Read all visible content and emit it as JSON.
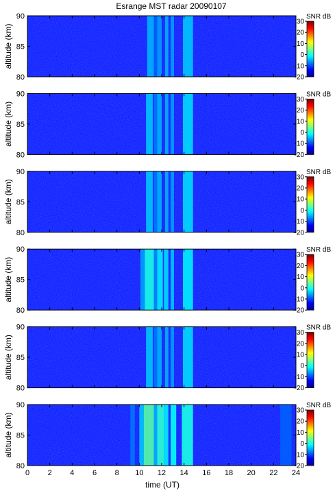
{
  "title": "Esrange MST radar 20090107",
  "chart_data": {
    "type": "heatmap",
    "title": "Esrange MST radar 20090107",
    "xlabel": "time (UT)",
    "ylabel": "altitude (km)",
    "colorbar_label": "SNR dB",
    "xlim": [
      0,
      24
    ],
    "x_ticks": [
      0,
      2,
      4,
      6,
      8,
      10,
      12,
      14,
      16,
      18,
      20,
      22,
      24
    ],
    "ylim": [
      80,
      90
    ],
    "y_ticks": [
      80,
      85,
      90
    ],
    "clim": [
      -20,
      30
    ],
    "c_ticks": [
      -20,
      -10,
      0,
      10,
      20,
      30
    ],
    "colormap": "jet",
    "background_snr_db": -13,
    "panel_count": 6,
    "panels": [
      {
        "bands": [
          {
            "start": 10.7,
            "end": 11.3,
            "snr_db": -5
          },
          {
            "start": 11.3,
            "end": 11.6,
            "snr_db": -9
          },
          {
            "start": 11.6,
            "end": 12.0,
            "snr_db": -6
          },
          {
            "start": 12.3,
            "end": 12.6,
            "snr_db": -5
          },
          {
            "start": 12.8,
            "end": 13.1,
            "snr_db": -6
          },
          {
            "start": 13.9,
            "end": 14.8,
            "snr_db": -4
          }
        ]
      },
      {
        "bands": [
          {
            "start": 10.6,
            "end": 11.2,
            "snr_db": -4
          },
          {
            "start": 11.3,
            "end": 11.6,
            "snr_db": -8
          },
          {
            "start": 11.6,
            "end": 12.0,
            "snr_db": -5
          },
          {
            "start": 12.3,
            "end": 12.6,
            "snr_db": -5
          },
          {
            "start": 12.8,
            "end": 13.1,
            "snr_db": -6
          },
          {
            "start": 13.9,
            "end": 14.8,
            "snr_db": -3
          }
        ]
      },
      {
        "bands": [
          {
            "start": 10.6,
            "end": 11.2,
            "snr_db": -4
          },
          {
            "start": 11.3,
            "end": 11.6,
            "snr_db": -8
          },
          {
            "start": 11.6,
            "end": 12.0,
            "snr_db": -5
          },
          {
            "start": 12.3,
            "end": 12.6,
            "snr_db": -5
          },
          {
            "start": 12.8,
            "end": 13.1,
            "snr_db": -6
          },
          {
            "start": 13.9,
            "end": 14.8,
            "snr_db": -3
          }
        ]
      },
      {
        "bands": [
          {
            "start": 10.1,
            "end": 10.5,
            "snr_db": -6
          },
          {
            "start": 10.5,
            "end": 11.3,
            "snr_db": 0
          },
          {
            "start": 11.3,
            "end": 11.6,
            "snr_db": -7
          },
          {
            "start": 11.6,
            "end": 12.1,
            "snr_db": -2
          },
          {
            "start": 12.2,
            "end": 12.6,
            "snr_db": -3
          },
          {
            "start": 12.8,
            "end": 13.1,
            "snr_db": -4
          },
          {
            "start": 13.9,
            "end": 14.8,
            "snr_db": -2
          }
        ]
      },
      {
        "bands": [
          {
            "start": 10.6,
            "end": 11.2,
            "snr_db": -4
          },
          {
            "start": 11.3,
            "end": 11.6,
            "snr_db": -8
          },
          {
            "start": 11.6,
            "end": 12.0,
            "snr_db": -5
          },
          {
            "start": 12.3,
            "end": 12.6,
            "snr_db": -5
          },
          {
            "start": 12.8,
            "end": 13.1,
            "snr_db": -6
          },
          {
            "start": 13.9,
            "end": 14.8,
            "snr_db": -3
          }
        ]
      },
      {
        "bands": [
          {
            "start": 9.2,
            "end": 9.6,
            "snr_db": -8
          },
          {
            "start": 10.0,
            "end": 10.4,
            "snr_db": -4
          },
          {
            "start": 10.4,
            "end": 11.3,
            "snr_db": 3
          },
          {
            "start": 11.3,
            "end": 11.6,
            "snr_db": -5
          },
          {
            "start": 11.6,
            "end": 12.2,
            "snr_db": 1
          },
          {
            "start": 12.2,
            "end": 12.6,
            "snr_db": -2
          },
          {
            "start": 12.8,
            "end": 13.3,
            "snr_db": -1
          },
          {
            "start": 13.8,
            "end": 14.8,
            "snr_db": 0
          },
          {
            "start": 22.6,
            "end": 23.6,
            "snr_db": -9
          }
        ]
      }
    ]
  }
}
